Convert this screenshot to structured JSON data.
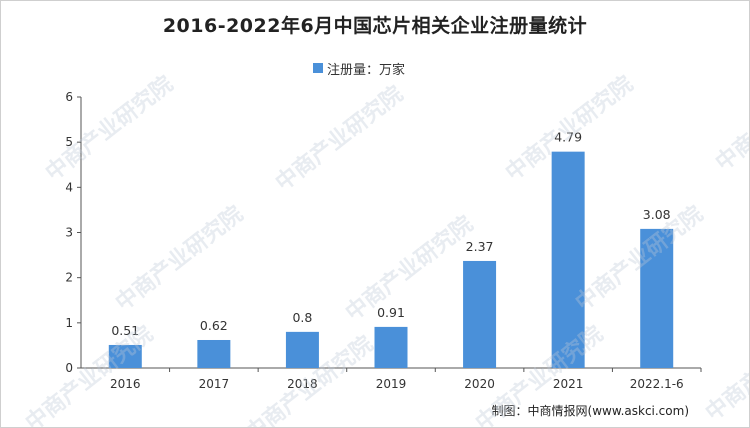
{
  "page": {
    "title": "2016-2022年6月中国芯片相关企业注册量统计",
    "source": "制图：中商情报网(www.askci.com)",
    "watermark": "中商产业研究院"
  },
  "colors": {
    "bar": "#4a90d9",
    "axis": "#555555"
  },
  "chart_data": {
    "type": "bar",
    "title": "2016-2022年6月中国芯片相关企业注册量统计",
    "categories": [
      "2016",
      "2017",
      "2018",
      "2019",
      "2020",
      "2021",
      "2022.1-6"
    ],
    "series": [
      {
        "name": "注册量：万家",
        "values": [
          0.51,
          0.62,
          0.8,
          0.91,
          2.37,
          4.79,
          3.08
        ],
        "labels": [
          "0.51",
          "0.62",
          "0.8",
          "0.91",
          "2.37",
          "4.79",
          "3.08"
        ]
      }
    ],
    "yticks": [
      "0",
      "1",
      "2",
      "3",
      "4",
      "5",
      "6"
    ],
    "ylim": [
      0,
      6
    ],
    "grid": false,
    "legend_position": "top-center"
  }
}
